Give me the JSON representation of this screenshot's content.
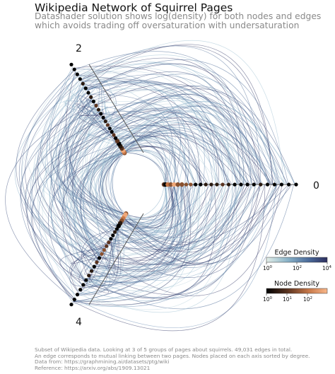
{
  "header": {
    "title": "Wikipedia Network of Squirrel Pages",
    "subtitle_lines": [
      "Datashader solution shows log(density) for both nodes and edges",
      "which avoids trading off oversaturation with undersaturation"
    ]
  },
  "axes": {
    "labels": [
      "0",
      "2",
      "4"
    ]
  },
  "legends": {
    "edge": {
      "title": "Edge Density",
      "ticks": [
        "10",
        "10",
        "10"
      ],
      "exponents": [
        "0",
        "2",
        "4"
      ],
      "colors": [
        "#e2eee8",
        "#8ab3c8",
        "#4a6a9a",
        "#2e2f5e"
      ]
    },
    "node": {
      "title": "Node Density",
      "ticks": [
        "10",
        "10",
        "10"
      ],
      "exponents": [
        "0",
        "1",
        "2"
      ],
      "colors": [
        "#000000",
        "#5b3420",
        "#c8794a",
        "#f9b78a"
      ]
    }
  },
  "footer": {
    "lines": [
      "Subset of Wikipedia data. Looking at 3 of 5 groups of pages about squirrels. 49,031 edges in total.",
      "An edge corresponds to mutual linking between two pages. Nodes placed on each axis sorted by degree.",
      "Data from: https://graphmining.ai/datasets/ptg/wiki",
      "Reference: https://arxiv.org/abs/1909.13021"
    ]
  }
}
